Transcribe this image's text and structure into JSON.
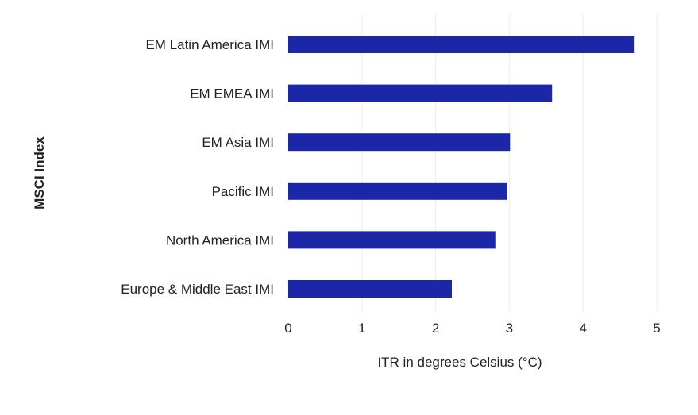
{
  "chart_data": {
    "type": "bar",
    "orientation": "horizontal",
    "title": "",
    "xlabel": "ITR in degrees Celsius (°C)",
    "ylabel": "MSCI Index",
    "categories": [
      "EM Latin America IMI",
      "EM EMEA IMI",
      "EM Asia IMI",
      "Pacific IMI",
      "North America IMI",
      "Europe & Middle East IMI"
    ],
    "values": [
      4.7,
      3.58,
      3.01,
      2.97,
      2.81,
      2.22
    ],
    "xlim": [
      0,
      5
    ],
    "xticks": [
      "0",
      "1",
      "2",
      "3",
      "4",
      "5"
    ],
    "grid": "vertical",
    "legend": "none",
    "bar_color": "#1c27a8"
  }
}
